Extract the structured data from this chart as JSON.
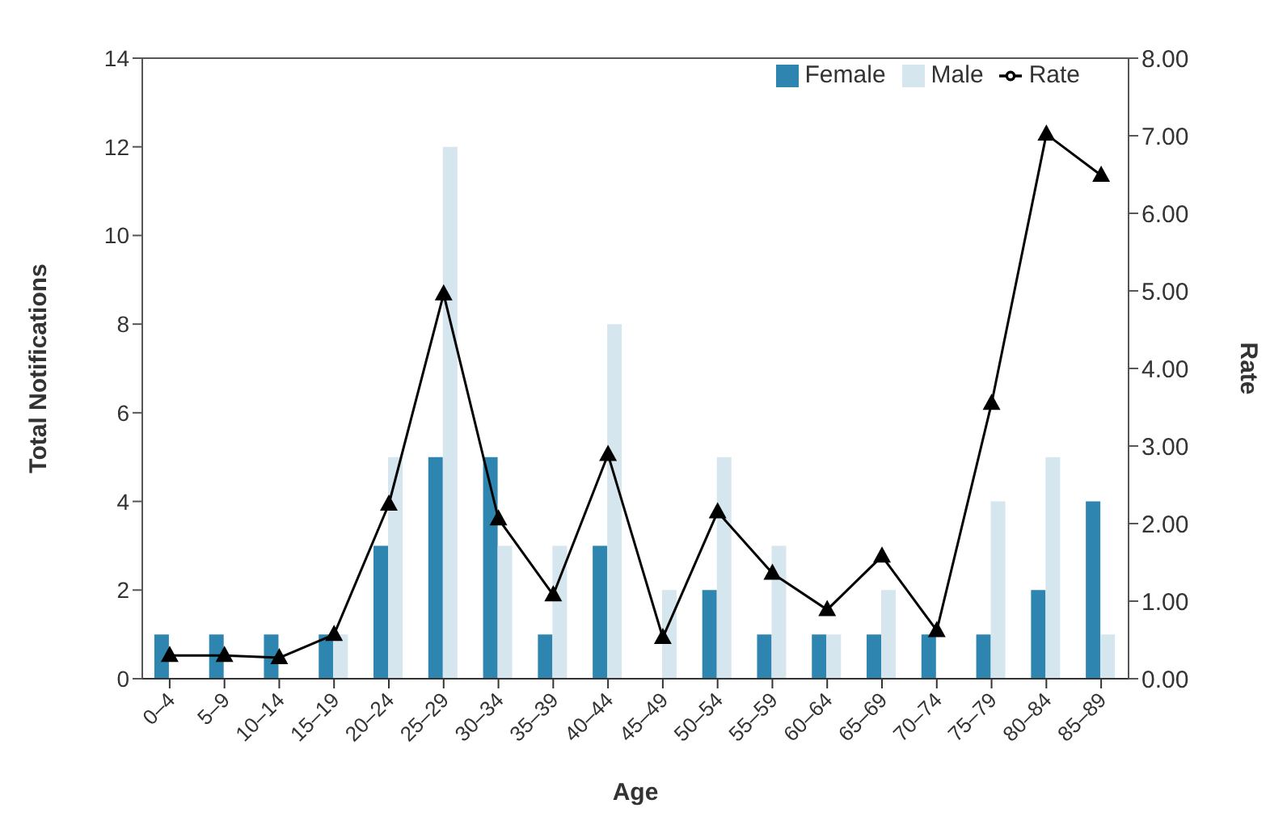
{
  "chart_data": {
    "type": "bar",
    "xlabel": "Age",
    "ylabel": "Total Notifications",
    "y2label": "Rate",
    "categories": [
      "0–4",
      "5–9",
      "10–14",
      "15–19",
      "20–24",
      "25–29",
      "30–34",
      "35–39",
      "40–44",
      "45–49",
      "50–54",
      "55–59",
      "60–64",
      "65–69",
      "70–74",
      "75–79",
      "80–84",
      "85–89"
    ],
    "series": [
      {
        "name": "Female",
        "color": "#2e86b0",
        "values": [
          1,
          1,
          1,
          1,
          3,
          5,
          5,
          1,
          3,
          0,
          2,
          1,
          1,
          1,
          1,
          1,
          2,
          4
        ]
      },
      {
        "name": "Male",
        "color": "#d5e6ef",
        "values": [
          0,
          0,
          0,
          1,
          5,
          12,
          3,
          3,
          8,
          2,
          5,
          3,
          1,
          2,
          0,
          4,
          5,
          1
        ]
      },
      {
        "name": "Rate",
        "type": "line",
        "axis": "y2",
        "color": "#000000",
        "marker": "triangle",
        "values": [
          0.3,
          0.3,
          0.27,
          0.57,
          2.25,
          4.96,
          2.06,
          1.08,
          2.89,
          0.53,
          2.15,
          1.36,
          0.89,
          1.58,
          0.62,
          3.55,
          7.02,
          6.49
        ]
      }
    ],
    "ylim": [
      0,
      14
    ],
    "yticks": [
      0,
      2,
      4,
      6,
      8,
      10,
      12,
      14
    ],
    "y2lim": [
      0,
      8
    ],
    "y2ticks": [
      {
        "value": 0,
        "label": "0.00"
      },
      {
        "value": 1,
        "label": "1.00"
      },
      {
        "value": 2,
        "label": "2.00"
      },
      {
        "value": 3,
        "label": "3.00"
      },
      {
        "value": 4,
        "label": "4.00"
      },
      {
        "value": 5,
        "label": "5.00"
      },
      {
        "value": 6,
        "label": "6.00"
      },
      {
        "value": 7,
        "label": "7.00"
      },
      {
        "value": 8,
        "label": "8.00"
      }
    ],
    "grid": false,
    "legend": "top right"
  }
}
